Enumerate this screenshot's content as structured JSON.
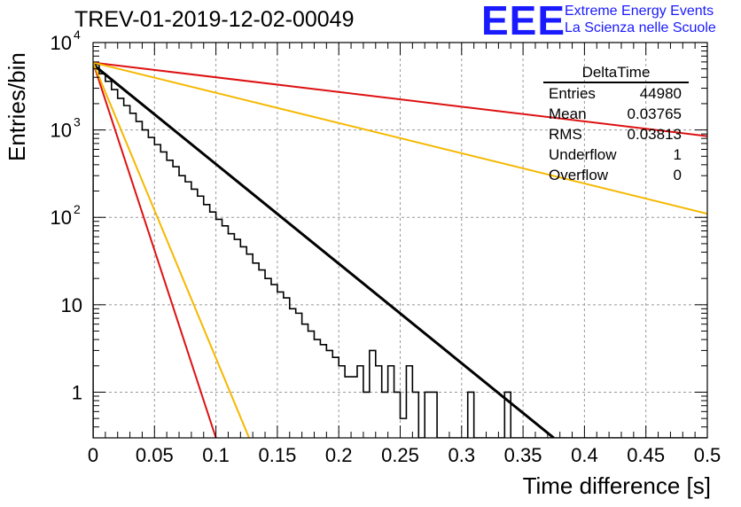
{
  "title": "TREV-01-2019-12-02-00049",
  "logo": {
    "mark": "EEE",
    "line1": "Extreme Energy Events",
    "line2": "La Scienza nelle Scuole"
  },
  "stats_box": {
    "name": "DeltaTime",
    "rows": [
      {
        "label": "Entries",
        "value": "44980"
      },
      {
        "label": "Mean",
        "value": "0.03765"
      },
      {
        "label": "RMS",
        "value": "0.03813"
      },
      {
        "label": "Underflow",
        "value": "1"
      },
      {
        "label": "Overflow",
        "value": "0"
      }
    ]
  },
  "colors": {
    "histogram": "#000000",
    "fit": "#000000",
    "red_curves": "#dd1111",
    "orange_curves": "#f5b800",
    "grid": "#999999"
  },
  "chart_data": {
    "type": "line",
    "xlabel": "Time difference [s]",
    "ylabel": "Entries/bin",
    "xlim": [
      0,
      0.5
    ],
    "ylim": [
      0.3,
      10000
    ],
    "yscale": "log",
    "grid": true,
    "x_ticks": [
      "0",
      "0.05",
      "0.1",
      "0.15",
      "0.2",
      "0.25",
      "0.3",
      "0.35",
      "0.4",
      "0.45",
      "0.5"
    ],
    "y_ticks": [
      {
        "value": 1,
        "label": "1"
      },
      {
        "value": 10,
        "label": "10"
      },
      {
        "value": 100,
        "label": "10",
        "exp": "2"
      },
      {
        "value": 1000,
        "label": "10",
        "exp": "3"
      },
      {
        "value": 10000,
        "label": "10",
        "exp": "4"
      }
    ],
    "histogram": {
      "bin_width": 0.005,
      "counts": [
        5600,
        4400,
        3600,
        2900,
        2300,
        1900,
        1550,
        1250,
        1000,
        820,
        680,
        560,
        450,
        380,
        300,
        255,
        210,
        175,
        140,
        115,
        95,
        80,
        65,
        56,
        46,
        38,
        30,
        25,
        20,
        17,
        14,
        12,
        9,
        8,
        6,
        5,
        4,
        3.5,
        3,
        2.5,
        2,
        1.5,
        1.5,
        2,
        1,
        3,
        2,
        1,
        2,
        1,
        0.5,
        2,
        1,
        0,
        1,
        1,
        0,
        0,
        0,
        0,
        0,
        1,
        0,
        0,
        0,
        0,
        0,
        1,
        0,
        0,
        0,
        0,
        0,
        0,
        0,
        0,
        0,
        0,
        0,
        0,
        0,
        0,
        0,
        0,
        0,
        0,
        0,
        0,
        0,
        0,
        0,
        0,
        0,
        0,
        0,
        0,
        0,
        0,
        0,
        0
      ]
    },
    "series": [
      {
        "color": "black",
        "x": [
          0,
          0.375
        ],
        "y": [
          5600,
          0.3
        ]
      },
      {
        "color": "red",
        "x": [
          0,
          0.5
        ],
        "y": [
          5900,
          850
        ]
      },
      {
        "color": "orange",
        "x": [
          0,
          0.5
        ],
        "y": [
          5900,
          110
        ]
      },
      {
        "color": "red",
        "x": [
          0,
          0.1
        ],
        "y": [
          5900,
          0.3
        ]
      },
      {
        "color": "orange",
        "x": [
          0,
          0.127
        ],
        "y": [
          5900,
          0.3
        ]
      }
    ]
  }
}
